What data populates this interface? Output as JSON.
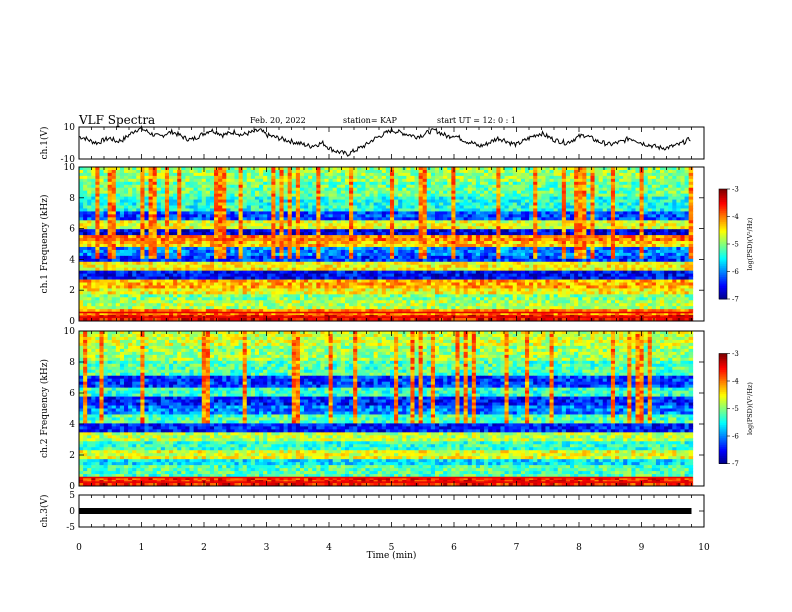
{
  "header": {
    "title": "VLF Spectra",
    "date": "Feb. 20, 2022",
    "station": "station= KAP",
    "start": "start  UT =  12: 0  : 1"
  },
  "chart_data": [
    {
      "type": "line",
      "panel": "ch1-waveform",
      "ylabel": "ch.1(V)",
      "ylim": [
        -10,
        10
      ],
      "yticks": [
        "10",
        "-10"
      ],
      "xlim": [
        0,
        10
      ],
      "x": [
        0,
        0.1,
        0.2,
        0.3,
        0.4,
        0.5,
        0.6,
        0.7,
        0.8,
        0.9,
        1.0,
        1.1,
        1.2,
        1.3,
        1.4,
        1.5,
        1.6,
        1.7,
        1.8,
        1.9,
        2.0,
        2.1,
        2.2,
        2.3,
        2.4,
        2.5,
        2.6,
        2.7,
        2.8,
        2.9,
        3.0,
        3.1,
        3.2,
        3.3,
        3.4,
        3.5,
        3.6,
        3.7,
        3.8,
        3.9,
        4.0,
        4.1,
        4.2,
        4.3,
        4.4,
        4.5,
        4.6,
        4.7,
        4.8,
        4.9,
        5.0,
        5.1,
        5.2,
        5.3,
        5.4,
        5.5,
        5.6,
        5.7,
        5.8,
        5.9,
        6.0,
        6.1,
        6.2,
        6.3,
        6.4,
        6.5,
        6.6,
        6.7,
        6.8,
        6.9,
        7.0,
        7.1,
        7.2,
        7.3,
        7.4,
        7.5,
        7.6,
        7.7,
        7.8,
        7.9,
        8.0,
        8.1,
        8.2,
        8.3,
        8.4,
        8.5,
        8.6,
        8.7,
        8.8,
        8.9,
        9.0,
        9.1,
        9.2,
        9.3,
        9.4,
        9.5,
        9.6,
        9.7,
        9.8
      ],
      "values": [
        4,
        3,
        1,
        0,
        2,
        3,
        1,
        2,
        5,
        8,
        9,
        7,
        5,
        4,
        6,
        7,
        5,
        3,
        2,
        4,
        6,
        8,
        7,
        5,
        6,
        7,
        5,
        6,
        7,
        8,
        5,
        4,
        3,
        2,
        1,
        0,
        -1,
        -2,
        -1,
        0,
        -3,
        -5,
        -6,
        -7,
        -5,
        -3,
        -1,
        2,
        4,
        6,
        8,
        7,
        6,
        5,
        4,
        5,
        7,
        8,
        6,
        4,
        5,
        3,
        1,
        0,
        -2,
        -1,
        1,
        3,
        2,
        0,
        -1,
        1,
        3,
        5,
        6,
        4,
        2,
        1,
        0,
        2,
        4,
        5,
        3,
        1,
        0,
        -1,
        0,
        1,
        3,
        2,
        0,
        -1,
        -2,
        -3,
        -3,
        -2,
        -1,
        1,
        3
      ]
    },
    {
      "type": "heatmap",
      "panel": "ch1-spectrogram",
      "ylabel": "ch.1 Frequency  (kHz)",
      "ylim": [
        0,
        10
      ],
      "yticks": [
        "0",
        "2",
        "4",
        "6",
        "8",
        "10"
      ],
      "xlim": [
        0,
        10
      ],
      "colorbar": {
        "label": "log(PSD)(V²/Hz)",
        "range": [
          -7,
          -3
        ],
        "ticks": [
          "-3",
          "-4",
          "-5",
          "-6",
          "-7"
        ]
      },
      "bands": [
        {
          "f": 0.3,
          "level": -3.5
        },
        {
          "f": 0.6,
          "level": -4.0
        },
        {
          "f": 1.0,
          "level": -4.8
        },
        {
          "f": 1.5,
          "level": -5.0
        },
        {
          "f": 2.0,
          "level": -4.5
        },
        {
          "f": 2.3,
          "level": -4.2
        },
        {
          "f": 3.0,
          "level": -6.5
        },
        {
          "f": 3.5,
          "level": -4.5
        },
        {
          "f": 4.0,
          "level": -6.3
        },
        {
          "f": 4.5,
          "level": -6.0
        },
        {
          "f": 5.0,
          "level": -4.3
        },
        {
          "f": 5.3,
          "level": -4.0
        },
        {
          "f": 5.8,
          "level": -6.6
        },
        {
          "f": 6.2,
          "level": -4.6
        },
        {
          "f": 6.8,
          "level": -6.2
        },
        {
          "f": 7.5,
          "level": -5.4
        },
        {
          "f": 8.5,
          "level": -5.1
        },
        {
          "f": 9.5,
          "level": -4.9
        }
      ]
    },
    {
      "type": "heatmap",
      "panel": "ch2-spectrogram",
      "ylabel": "ch.2 Frequency  (kHz)",
      "ylim": [
        0,
        10
      ],
      "yticks": [
        "0",
        "2",
        "4",
        "6",
        "8",
        "10"
      ],
      "xlim": [
        0,
        10
      ],
      "colorbar": {
        "label": "log(PSD)(V²/Hz)",
        "range": [
          -7,
          -3
        ],
        "ticks": [
          "-3",
          "-4",
          "-5",
          "-6",
          "-7"
        ]
      },
      "bands": [
        {
          "f": 0.3,
          "level": -3.6
        },
        {
          "f": 1.0,
          "level": -5.2
        },
        {
          "f": 1.5,
          "level": -5.6
        },
        {
          "f": 2.0,
          "level": -4.6
        },
        {
          "f": 2.5,
          "level": -5.3
        },
        {
          "f": 3.2,
          "level": -4.8
        },
        {
          "f": 3.8,
          "level": -6.4
        },
        {
          "f": 4.3,
          "level": -5.2
        },
        {
          "f": 5.0,
          "level": -6.0
        },
        {
          "f": 5.5,
          "level": -6.4
        },
        {
          "f": 6.0,
          "level": -5.3
        },
        {
          "f": 6.7,
          "level": -6.3
        },
        {
          "f": 7.5,
          "level": -5.2
        },
        {
          "f": 8.5,
          "level": -4.9
        },
        {
          "f": 9.5,
          "level": -4.7
        }
      ]
    },
    {
      "type": "line",
      "panel": "ch3-waveform",
      "ylabel": "ch.3(V)",
      "ylim": [
        -5,
        5
      ],
      "yticks": [
        "5",
        "0",
        "-5"
      ],
      "xlim": [
        0,
        10
      ],
      "xlabel": "Time  (min)",
      "xticks": [
        "0",
        "1",
        "2",
        "3",
        "4",
        "5",
        "6",
        "7",
        "8",
        "9",
        "10"
      ],
      "x": [
        0,
        9.8
      ],
      "values": [
        0,
        0
      ]
    }
  ]
}
